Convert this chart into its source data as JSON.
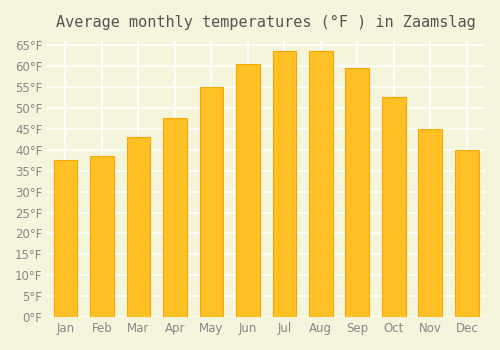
{
  "title": "Average monthly temperatures (°F ) in Zaamslag",
  "months": [
    "Jan",
    "Feb",
    "Mar",
    "Apr",
    "May",
    "Jun",
    "Jul",
    "Aug",
    "Sep",
    "Oct",
    "Nov",
    "Dec"
  ],
  "values": [
    37.5,
    38.5,
    43.0,
    47.5,
    55.0,
    60.5,
    63.5,
    63.5,
    59.5,
    52.5,
    45.0,
    40.0
  ],
  "bar_color_main": "#FFC125",
  "bar_color_edge": "#FFA500",
  "background_color": "#F5F5DC",
  "grid_color": "#FFFFFF",
  "ytick_min": 0,
  "ytick_max": 65,
  "ytick_step": 5,
  "title_fontsize": 11,
  "tick_fontsize": 8.5
}
